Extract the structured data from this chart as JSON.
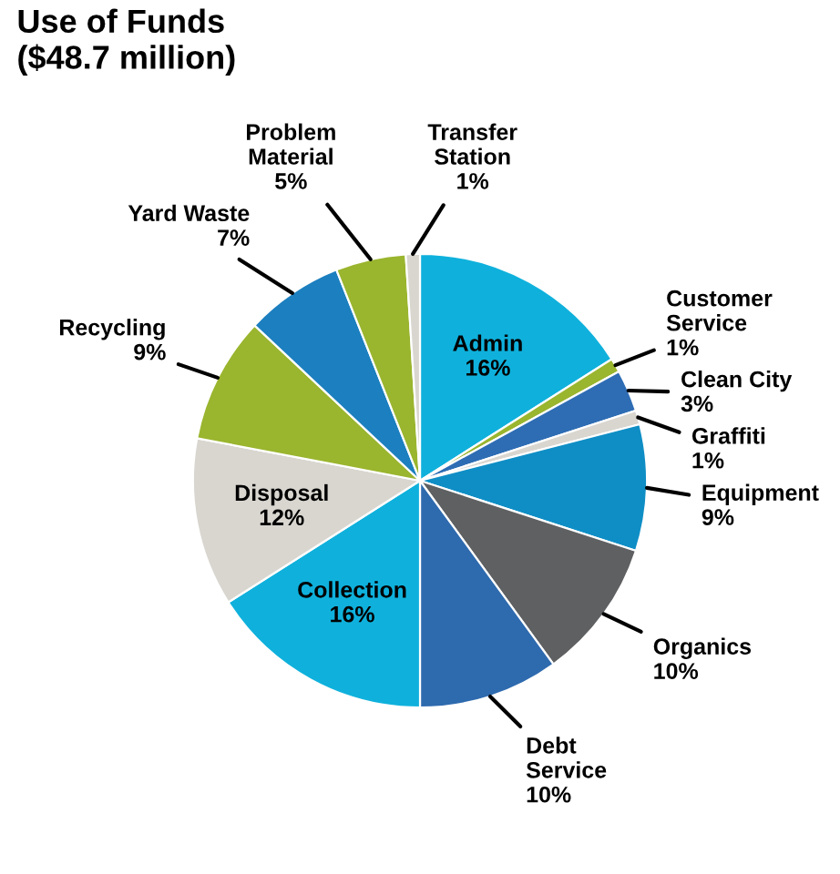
{
  "chart_data": {
    "type": "pie",
    "title": "Use of Funds\n($48.7 million)",
    "categories": [
      "Admin",
      "Customer\nService",
      "Clean City",
      "Graffiti",
      "Equipment",
      "Organics",
      "Debt\nService",
      "Collection",
      "Disposal",
      "Recycling",
      "Yard Waste",
      "Problem\nMaterial",
      "Transfer\nStation"
    ],
    "values": [
      16,
      1,
      3,
      1,
      9,
      10,
      10,
      16,
      12,
      9,
      7,
      5,
      1
    ],
    "colors": [
      "#0fb1dc",
      "#9ab52e",
      "#2e6db4",
      "#d9d6d0",
      "#0f8ec5",
      "#5f6062",
      "#2e6aae",
      "#0fb1dc",
      "#d9d6d0",
      "#9ab52e",
      "#1c7fbf",
      "#9ab52e",
      "#d9d6d0"
    ],
    "value_labels": [
      "16%",
      "1%",
      "3%",
      "1%",
      "9%",
      "10%",
      "10%",
      "16%",
      "12%",
      "9%",
      "7%",
      "5%",
      "1%"
    ],
    "legend": false
  }
}
